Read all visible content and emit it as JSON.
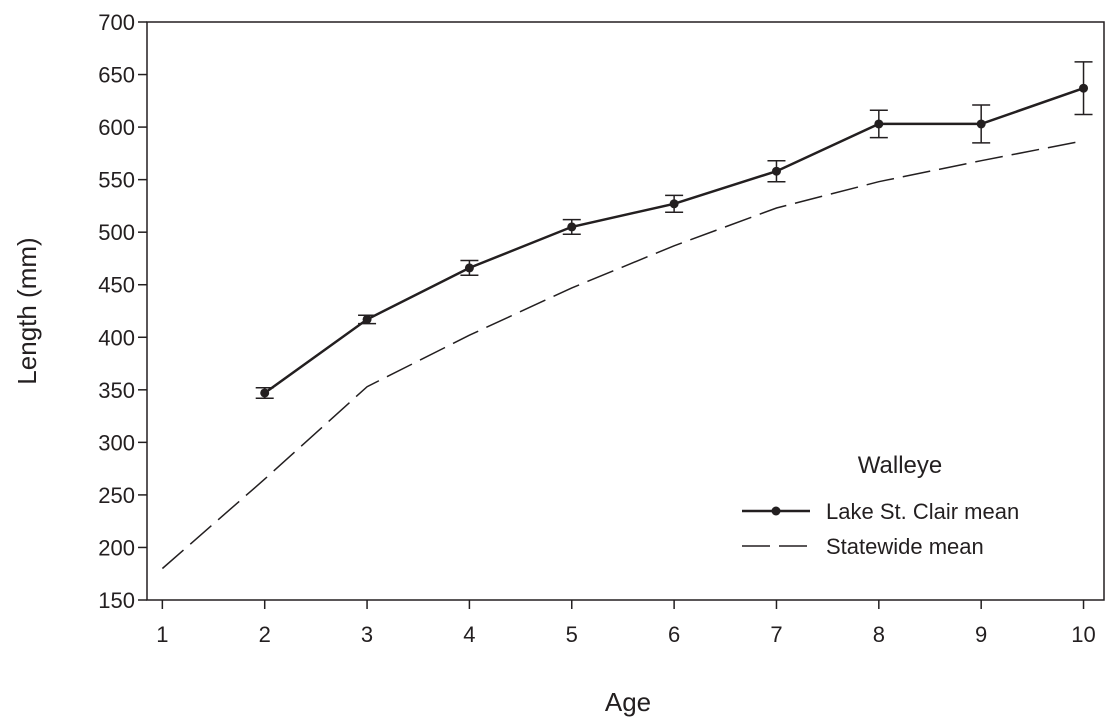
{
  "chart_data": {
    "type": "line",
    "title": "",
    "xlabel": "Age",
    "ylabel": "Length (mm)",
    "xlim": [
      0.85,
      10.2
    ],
    "ylim": [
      150,
      700
    ],
    "x_ticks": [
      1,
      2,
      3,
      4,
      5,
      6,
      7,
      8,
      9,
      10
    ],
    "y_ticks": [
      150,
      200,
      250,
      300,
      350,
      400,
      450,
      500,
      550,
      600,
      650,
      700
    ],
    "grid": false,
    "legend": {
      "title": "Walleye",
      "position": "bottom-right"
    },
    "series": [
      {
        "name": "Lake St. Clair mean",
        "style": "solid-with-markers",
        "x": [
          2,
          3,
          4,
          5,
          6,
          7,
          8,
          9,
          10
        ],
        "y": [
          347,
          417,
          466,
          505,
          527,
          558,
          603,
          603,
          637
        ],
        "error": [
          5,
          4,
          7,
          7,
          8,
          10,
          13,
          18,
          25
        ]
      },
      {
        "name": "Statewide mean",
        "style": "dashed",
        "x": [
          1,
          2,
          3,
          4,
          5,
          6,
          7,
          8,
          9,
          10
        ],
        "y": [
          180,
          265,
          353,
          402,
          447,
          487,
          523,
          548,
          568,
          587
        ]
      }
    ]
  },
  "colors": {
    "ink": "#231f20",
    "background": "#ffffff"
  }
}
